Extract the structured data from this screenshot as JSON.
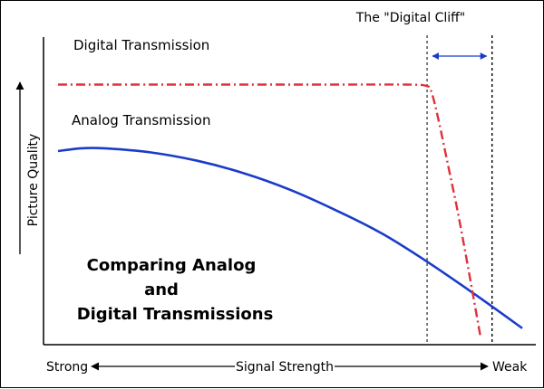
{
  "chart_data": {
    "type": "line",
    "title": "Comparing Analog and Digital Transmissions",
    "title_lines": [
      "Comparing Analog",
      "and",
      "Digital Transmissions"
    ],
    "xlabel": "Signal Strength",
    "ylabel": "Picture Quality",
    "x_start_label": "Strong",
    "x_end_label": "Weak",
    "xlim": [
      0,
      1
    ],
    "ylim": [
      0,
      1
    ],
    "grid": false,
    "series": [
      {
        "name": "Digital Transmission",
        "color": "#e0303a",
        "style": "dash-dot",
        "x": [
          0.0,
          0.2,
          0.4,
          0.6,
          0.75,
          0.795,
          0.805,
          0.82,
          0.84,
          0.86,
          0.88,
          0.91
        ],
        "y": [
          0.91,
          0.91,
          0.91,
          0.91,
          0.91,
          0.905,
          0.88,
          0.78,
          0.62,
          0.46,
          0.28,
          0.0
        ]
      },
      {
        "name": "Analog Transmission",
        "color": "#1a3cc8",
        "style": "solid",
        "x": [
          0.0,
          0.05,
          0.1,
          0.2,
          0.3,
          0.4,
          0.5,
          0.6,
          0.7,
          0.8,
          0.9,
          1.0
        ],
        "y": [
          0.67,
          0.68,
          0.68,
          0.665,
          0.635,
          0.59,
          0.53,
          0.455,
          0.37,
          0.265,
          0.15,
          0.03
        ]
      }
    ],
    "annotation": {
      "text": "The \"Digital Cliff\"",
      "x_start": 0.795,
      "x_end": 0.935
    }
  }
}
